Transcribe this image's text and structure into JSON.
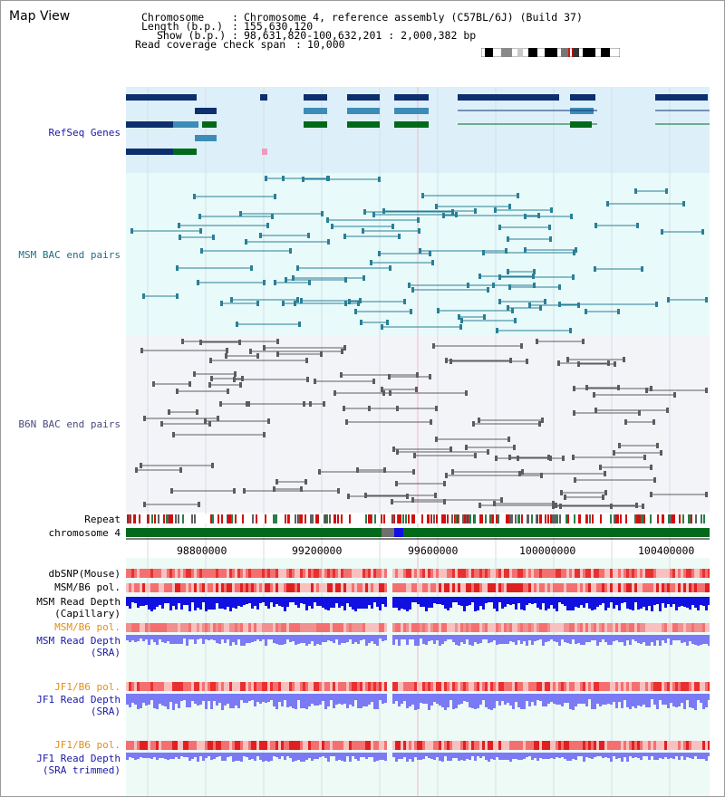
{
  "window": {
    "title": "Map View"
  },
  "header": {
    "chromosome_label": "Chromosome",
    "chromosome_value": "Chromosome 4, reference assembly (C57BL/6J) (Build 37)",
    "length_label": "Length (b.p.)",
    "length_value": "155,630,120",
    "show_label": "Show (b.p.)",
    "show_value": "98,631,820-100,632,201 : 2,000,382 bp",
    "coverage_label": "Read coverage check span",
    "coverage_value": "10,000"
  },
  "tracks": {
    "refseq": "RefSeq Genes",
    "msm_bac": "MSM BAC end pairs",
    "b6n_bac": "B6N BAC end pairs",
    "repeat": "Repeat",
    "chromosome": "chromosome 4",
    "dbsnp": "dbSNP(Mouse)",
    "msm_pol_1": "MSM/B6 pol.",
    "msm_cap_1": "MSM Read Depth",
    "msm_cap_2": "(Capillary)",
    "msm_pol_2": "MSM/B6 pol.",
    "msm_sra_1": "MSM Read Depth",
    "msm_sra_2": "(SRA)",
    "jf1_pol_1": "JF1/B6 pol.",
    "jf1_sra_1": "JF1 Read Depth",
    "jf1_sra_2": "(SRA)",
    "jf1_pol_2": "JF1/B6 pol.",
    "jf1_trim_1": "JF1 Read Depth",
    "jf1_trim_2": "(SRA trimmed)"
  },
  "axis": {
    "ticks": [
      "98800000",
      "99200000",
      "99600000",
      "100000000",
      "100400000"
    ]
  },
  "colors": {
    "refseq_bg": "#ddf0fa",
    "msm_bg": "#e8fafa",
    "b6n_bg": "#f3f4f8",
    "gene_dark": "#0e2f6e",
    "gene_mid": "#3d8cb8",
    "gene_green": "#006a1a",
    "msm_pair": "#2a7f96",
    "b6n_pair": "#5c5c5c",
    "label_navy": "#1a1aa6",
    "label_orange": "#e0901a",
    "depth_blue": "#1010e0",
    "depth_light": "#7a7af5"
  }
}
